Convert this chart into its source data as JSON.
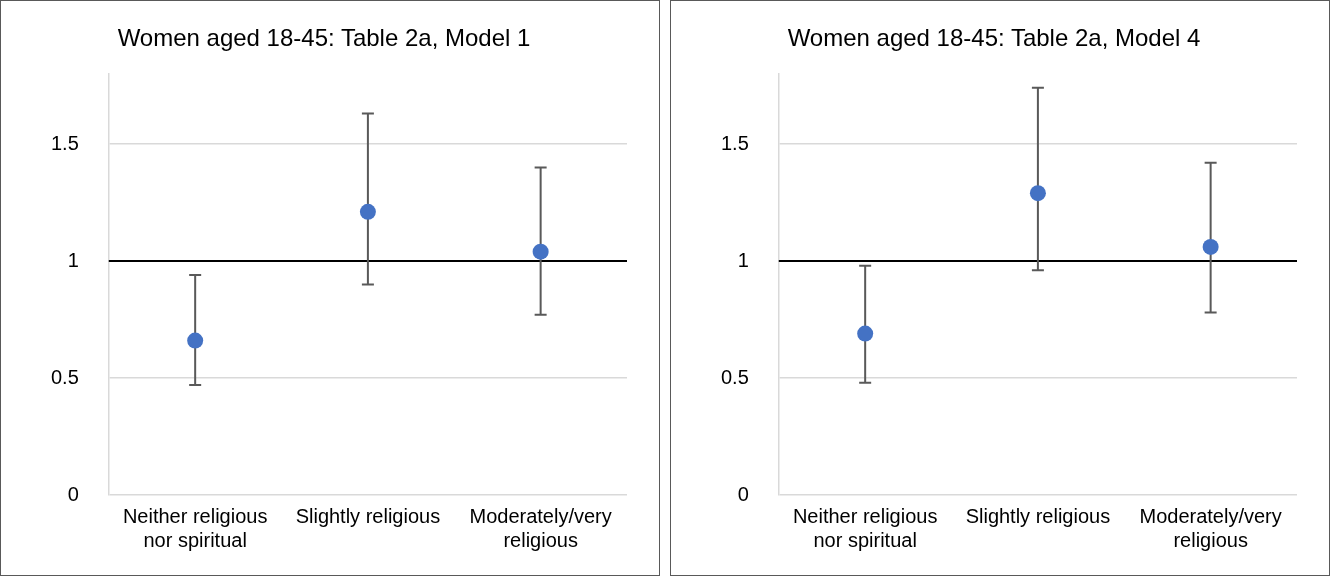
{
  "chart_data": [
    {
      "type": "scatter",
      "title": "Women aged 18-45: Table 2a, Model 1",
      "categories": [
        "Neither religious nor spiritual",
        "Slightly religious",
        "Moderately/very religious"
      ],
      "values": [
        0.66,
        1.21,
        1.04
      ],
      "errors": [
        [
          0.47,
          0.94
        ],
        [
          0.9,
          1.63
        ],
        [
          0.77,
          1.4
        ]
      ],
      "color": "#4472c4",
      "marker": "circle",
      "ylim": [
        0,
        1.8
      ],
      "yticks": [
        0,
        0.5,
        1,
        1.5
      ],
      "grid": "y",
      "ref_lines": [
        {
          "axis": "y",
          "value": 1,
          "color": "#000000"
        }
      ]
    },
    {
      "type": "scatter",
      "title": "Women aged 18-45: Table 2a, Model 4",
      "categories": [
        "Neither religious nor spiritual",
        "Slightly religious",
        "Moderately/very religious"
      ],
      "values": [
        0.69,
        1.29,
        1.06
      ],
      "errors": [
        [
          0.48,
          0.98
        ],
        [
          0.96,
          1.74
        ],
        [
          0.78,
          1.42
        ]
      ],
      "color": "#4472c4",
      "marker": "circle",
      "ylim": [
        0,
        1.8
      ],
      "yticks": [
        0,
        0.5,
        1,
        1.5
      ],
      "grid": "y",
      "ref_lines": [
        {
          "axis": "y",
          "value": 1,
          "color": "#000000"
        }
      ]
    }
  ]
}
